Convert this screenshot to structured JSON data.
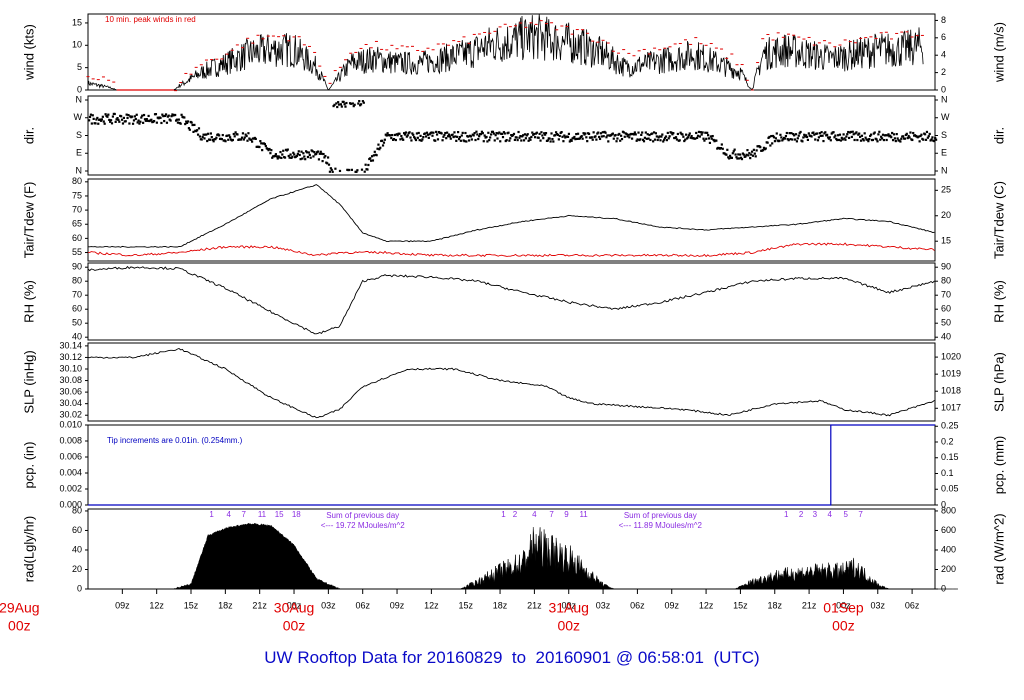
{
  "title": "UW Rooftop Data for 20160829  to  20160901 @ 06:58:01  (UTC)",
  "colors": {
    "axis": "#000000",
    "series": "#000000",
    "red": "#e00000",
    "blue": "#0000c0",
    "annot": "#8a2be2",
    "date": "#e00000"
  },
  "x_axis": {
    "hour_ticks": [
      {
        "label": "09z",
        "h": 9
      },
      {
        "label": "12z",
        "h": 12
      },
      {
        "label": "15z",
        "h": 15
      },
      {
        "label": "18z",
        "h": 18
      },
      {
        "label": "21z",
        "h": 21
      },
      {
        "label": "00z",
        "h": 24
      },
      {
        "label": "03z",
        "h": 27
      },
      {
        "label": "06z",
        "h": 30
      },
      {
        "label": "09z",
        "h": 33
      },
      {
        "label": "12z",
        "h": 36
      },
      {
        "label": "15z",
        "h": 39
      },
      {
        "label": "18z",
        "h": 42
      },
      {
        "label": "21z",
        "h": 45
      },
      {
        "label": "00z",
        "h": 48
      },
      {
        "label": "03z",
        "h": 51
      },
      {
        "label": "06z",
        "h": 54
      },
      {
        "label": "09z",
        "h": 57
      },
      {
        "label": "12z",
        "h": 60
      },
      {
        "label": "15z",
        "h": 63
      },
      {
        "label": "18z",
        "h": 66
      },
      {
        "label": "21z",
        "h": 69
      },
      {
        "label": "00z",
        "h": 72
      },
      {
        "label": "03z",
        "h": 75
      },
      {
        "label": "06z",
        "h": 78
      }
    ],
    "date_labels": [
      {
        "date": "29Aug",
        "hour": "00z",
        "h": 0
      },
      {
        "date": "30Aug",
        "hour": "00z",
        "h": 24
      },
      {
        "date": "31Aug",
        "hour": "00z",
        "h": 48
      },
      {
        "date": "01Sep",
        "hour": "00z",
        "h": 72
      }
    ]
  },
  "panels": {
    "wind": {
      "ylabel": "wind (kts)",
      "ylabel_right": "wind (m/s)",
      "note": "10 min. peak winds in red",
      "left_ticks": [
        "0",
        "5",
        "10",
        "15"
      ],
      "right_ticks": [
        "0",
        "2",
        "4",
        "6",
        "8"
      ]
    },
    "dir": {
      "ylabel": "dir.",
      "ylabel_right": "dir.",
      "ticks": [
        "N",
        "E",
        "S",
        "W",
        "N"
      ]
    },
    "temp": {
      "ylabel": "Tair/Tdew (F)",
      "ylabel_right": "Tair/Tdew (C)",
      "left_ticks": [
        "55",
        "60",
        "65",
        "70",
        "75",
        "80"
      ],
      "right_ticks": [
        "15",
        "20",
        "25"
      ]
    },
    "rh": {
      "ylabel": "RH (%)",
      "ylabel_right": "RH (%)",
      "ticks": [
        "40",
        "50",
        "60",
        "70",
        "80",
        "90"
      ]
    },
    "slp": {
      "ylabel": "SLP (inHg)",
      "ylabel_right": "SLP (hPa)",
      "left_ticks": [
        "30.02",
        "30.04",
        "30.06",
        "30.08",
        "30.10",
        "30.12",
        "30.14"
      ],
      "right_ticks": [
        "1017",
        "1018",
        "1019",
        "1020"
      ]
    },
    "pcp": {
      "ylabel": "pcp. (in)",
      "ylabel_right": "pcp. (mm)",
      "note": "Tip increments are 0.01in. (0.254mm.)",
      "left_ticks": [
        "0.000",
        "0.002",
        "0.004",
        "0.006",
        "0.008",
        "0.010"
      ],
      "right_ticks": [
        "0",
        "0.05",
        "0.1",
        "0.15",
        "0.2",
        "0.25"
      ]
    },
    "rad": {
      "ylabel": "rad(Lgly/hr)",
      "ylabel_right": "rad (W/m^2)",
      "left_ticks": [
        "0",
        "20",
        "40",
        "60",
        "80"
      ],
      "right_ticks": [
        "0",
        "200",
        "400",
        "600",
        "800"
      ],
      "notes": [
        {
          "line1": "Sum of previous day",
          "line2": "<--- 19.72 MJoules/m^2",
          "h": 30
        },
        {
          "line1": "Sum of previous day",
          "line2": "<--- 11.89 MJoules/m^2",
          "h": 56
        }
      ],
      "uv_marks": [
        {
          "text": "1",
          "h": 16.8
        },
        {
          "text": "4",
          "h": 18.3
        },
        {
          "text": "7",
          "h": 19.6
        },
        {
          "text": "11",
          "h": 21.2
        },
        {
          "text": "15",
          "h": 22.7
        },
        {
          "text": "18",
          "h": 24.2
        },
        {
          "text": "1",
          "h": 42.3
        },
        {
          "text": "2",
          "h": 43.3
        },
        {
          "text": "4",
          "h": 45.0
        },
        {
          "text": "7",
          "h": 46.5
        },
        {
          "text": "9",
          "h": 47.8
        },
        {
          "text": "11",
          "h": 49.3
        },
        {
          "text": "1",
          "h": 67.0
        },
        {
          "text": "2",
          "h": 68.3
        },
        {
          "text": "3",
          "h": 69.5
        },
        {
          "text": "4",
          "h": 70.8
        },
        {
          "text": "5",
          "h": 72.2
        },
        {
          "text": "7",
          "h": 73.5
        }
      ]
    }
  },
  "chart_data": [
    {
      "type": "line",
      "name": "wind",
      "x_unit": "hours from 29Aug 00z",
      "ylabel": "wind (kts)",
      "ylim": [
        0,
        17
      ],
      "series": [
        {
          "name": "wind",
          "x": [
            6,
            8,
            8.5,
            13.5,
            14,
            16,
            18,
            20,
            22,
            24,
            26,
            27,
            29,
            31,
            33,
            35,
            37,
            39,
            41,
            43,
            45,
            47,
            49,
            51,
            53,
            55,
            57,
            59,
            61,
            63,
            64,
            65,
            67,
            69,
            71,
            73,
            75,
            77,
            79
          ],
          "y": [
            1.5,
            0.5,
            0,
            0,
            1,
            4,
            6,
            8,
            9,
            9,
            5,
            0,
            6,
            7,
            6,
            6,
            7,
            8,
            10,
            11,
            12,
            11,
            10,
            8,
            5,
            6,
            7,
            8,
            6,
            4,
            0,
            8,
            9,
            8,
            7,
            8,
            9,
            9,
            10
          ]
        },
        {
          "name": "10 min. peak winds",
          "x": [
            6,
            8,
            8.5,
            13.5,
            14,
            16,
            18,
            20,
            22,
            24,
            26,
            27,
            29,
            31,
            33,
            35,
            37,
            39,
            41,
            43,
            45,
            47,
            49,
            51,
            53,
            55,
            57,
            59,
            61,
            63,
            64,
            65,
            67,
            69,
            71,
            73,
            75,
            77,
            79
          ],
          "y": [
            3,
            2,
            0,
            0,
            2,
            6,
            8,
            11,
            12,
            12,
            8,
            1,
            9,
            10,
            9,
            9,
            10,
            11,
            13,
            14,
            15,
            14,
            13,
            11,
            8,
            9,
            10,
            11,
            9,
            6,
            0,
            12,
            12,
            11,
            10,
            11,
            12,
            12,
            13
          ]
        }
      ]
    },
    {
      "type": "scatter",
      "name": "dir",
      "ylabel": "dir.",
      "yticks": [
        "N",
        "E",
        "S",
        "W",
        "N"
      ],
      "series": [
        {
          "name": "dir",
          "x": [
            6,
            8,
            10,
            12,
            14,
            16,
            18,
            20,
            22,
            24,
            26,
            28,
            30,
            32,
            34,
            36,
            38,
            40,
            42,
            44,
            46,
            48,
            50,
            52,
            54,
            56,
            58,
            60,
            62,
            64,
            66,
            68,
            70,
            72,
            74,
            76,
            78,
            80
          ],
          "y": [
            "W",
            "W",
            "W",
            "W",
            "W",
            "S",
            "S",
            "S",
            "E",
            "E",
            "E",
            "N",
            "N",
            "S",
            "S",
            "S",
            "S",
            "S",
            "S",
            "S",
            "S",
            "S",
            "S",
            "S",
            "S",
            "S",
            "S",
            "S",
            "E",
            "E",
            "S",
            "S",
            "S",
            "S",
            "S",
            "S",
            "S",
            "S"
          ]
        }
      ]
    },
    {
      "type": "line",
      "name": "temp",
      "ylabel": "Tair/Tdew (F)",
      "ylim": [
        52,
        81
      ],
      "series": [
        {
          "name": "Tair",
          "x": [
            6,
            10,
            14,
            18,
            22,
            26,
            28,
            30,
            32,
            36,
            40,
            44,
            48,
            52,
            56,
            60,
            64,
            68,
            72,
            76,
            80
          ],
          "y": [
            57,
            57,
            57,
            65,
            74,
            79,
            72,
            62,
            59,
            59,
            63,
            66,
            68,
            67,
            64,
            63,
            64,
            65,
            67,
            66,
            62
          ]
        },
        {
          "name": "Tdew",
          "x": [
            6,
            10,
            14,
            18,
            22,
            26,
            28,
            30,
            32,
            36,
            40,
            44,
            48,
            52,
            56,
            60,
            64,
            68,
            72,
            76,
            80
          ],
          "y": [
            55,
            54,
            55,
            57,
            57,
            54,
            55,
            55,
            55,
            54,
            54,
            54,
            54,
            54,
            54,
            54,
            55,
            58,
            58,
            57,
            56
          ]
        }
      ]
    },
    {
      "type": "line",
      "name": "rh",
      "ylabel": "RH (%)",
      "ylim": [
        38,
        93
      ],
      "series": [
        {
          "name": "RH",
          "x": [
            6,
            10,
            14,
            18,
            22,
            26,
            28,
            30,
            32,
            36,
            40,
            44,
            48,
            52,
            56,
            60,
            64,
            68,
            72,
            76,
            80
          ],
          "y": [
            88,
            90,
            89,
            75,
            58,
            42,
            48,
            80,
            84,
            83,
            80,
            72,
            65,
            60,
            65,
            72,
            80,
            82,
            82,
            72,
            80
          ]
        }
      ]
    },
    {
      "type": "line",
      "name": "slp",
      "ylabel": "SLP (inHg)",
      "ylim": [
        30.01,
        30.145
      ],
      "series": [
        {
          "name": "SLP",
          "x": [
            6,
            10,
            14,
            18,
            22,
            26,
            28,
            30,
            34,
            38,
            42,
            46,
            48,
            50,
            54,
            58,
            62,
            66,
            70,
            72,
            76,
            80
          ],
          "y": [
            30.12,
            30.12,
            30.135,
            30.1,
            30.05,
            30.015,
            30.03,
            30.07,
            30.1,
            30.1,
            30.08,
            30.07,
            30.05,
            30.04,
            30.035,
            30.03,
            30.02,
            30.04,
            30.045,
            30.03,
            30.02,
            30.045
          ]
        }
      ]
    },
    {
      "type": "line",
      "name": "pcp",
      "ylabel": "pcp. (in)",
      "ylim": [
        0,
        0.01
      ],
      "series": [
        {
          "name": "pcp",
          "x": [
            6,
            70.9,
            70.9,
            80
          ],
          "y": [
            0,
            0,
            0.01,
            0.01
          ]
        }
      ]
    },
    {
      "type": "area",
      "name": "rad",
      "ylabel": "rad(Lgly/hr)",
      "ylim": [
        0,
        82
      ],
      "series": [
        {
          "name": "rad",
          "x": [
            6,
            13.5,
            15,
            16.5,
            18,
            20,
            22,
            24,
            26,
            28,
            38.5,
            40,
            42,
            44,
            45,
            46,
            47,
            48,
            49,
            50,
            51,
            52,
            62.5,
            64,
            66,
            68,
            70,
            71,
            72,
            73,
            74,
            75,
            76,
            82
          ],
          "y": [
            0,
            0,
            5,
            55,
            62,
            67,
            65,
            45,
            10,
            0,
            0,
            8,
            20,
            30,
            50,
            45,
            40,
            35,
            25,
            15,
            5,
            0,
            0,
            8,
            15,
            18,
            20,
            20,
            20,
            25,
            15,
            5,
            0,
            0
          ]
        }
      ]
    }
  ]
}
